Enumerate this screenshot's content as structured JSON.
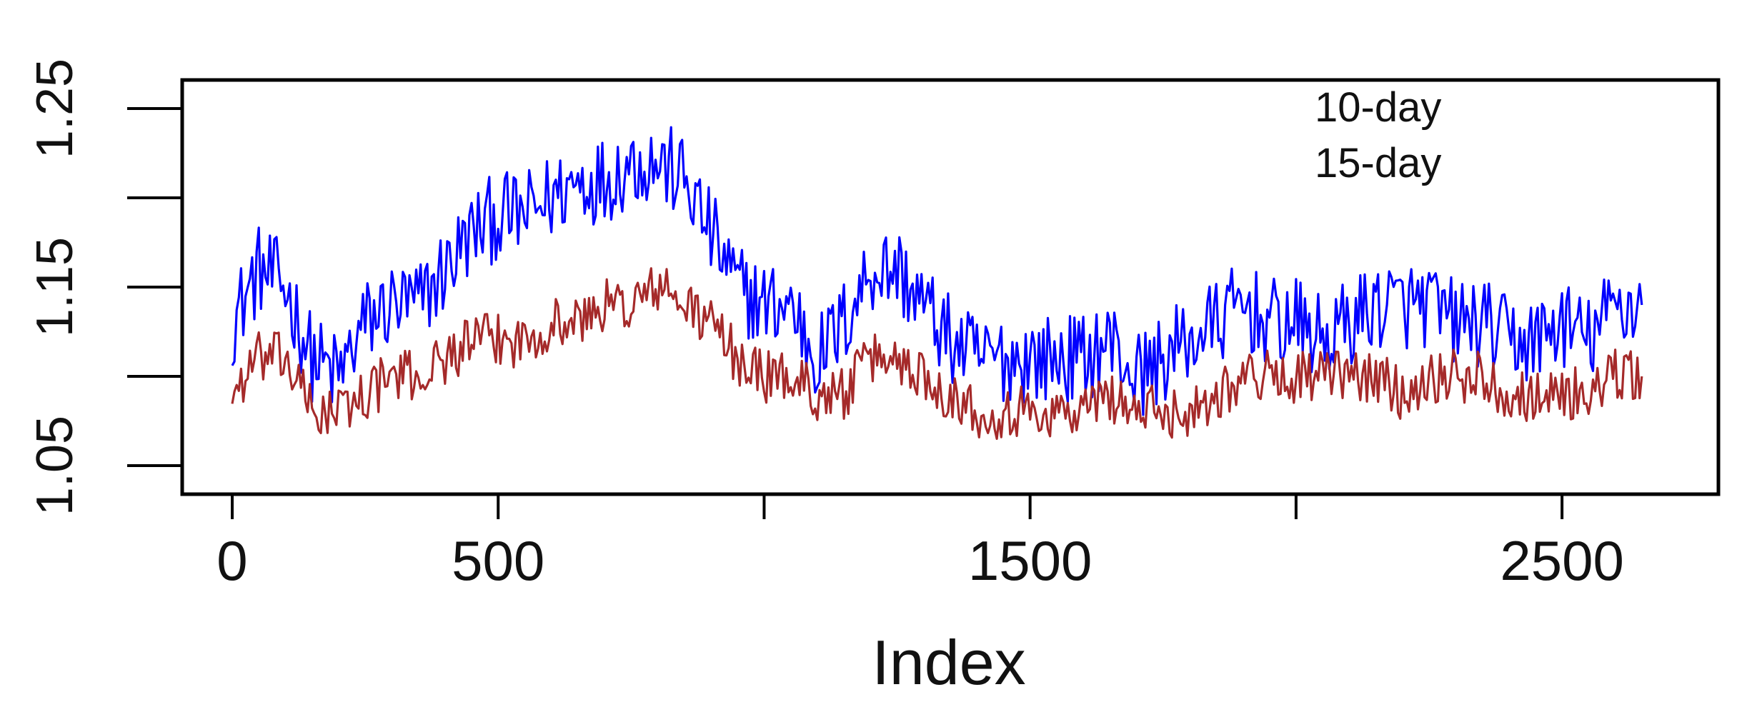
{
  "chart_data": {
    "type": "line",
    "title": "",
    "xlabel": "Index",
    "ylabel": "",
    "xlim": [
      0,
      2700
    ],
    "ylim": [
      1.05,
      1.25
    ],
    "x_ticks": [
      0,
      500,
      1000,
      1500,
      2000,
      2500
    ],
    "x_tick_labels": [
      "0",
      "500",
      "",
      "1500",
      "",
      "2500"
    ],
    "y_ticks": [
      1.05,
      1.1,
      1.15,
      1.2,
      1.25
    ],
    "y_tick_labels": [
      "1.05",
      "",
      "1.15",
      "",
      "1.25"
    ],
    "legend_position": "top-right",
    "grid": false,
    "series": [
      {
        "name": "15-day",
        "color": "#0000ff",
        "x": [
          0,
          50,
          100,
          150,
          200,
          250,
          300,
          350,
          400,
          450,
          500,
          550,
          600,
          650,
          700,
          750,
          800,
          850,
          900,
          950,
          1000,
          1050,
          1100,
          1150,
          1200,
          1250,
          1300,
          1350,
          1400,
          1450,
          1500,
          1550,
          1600,
          1650,
          1700,
          1750,
          1800,
          1850,
          1900,
          1950,
          2000,
          2050,
          2100,
          2150,
          2200,
          2250,
          2300,
          2350,
          2400,
          2450,
          2500,
          2550,
          2600,
          2650
        ],
        "values": [
          1.13,
          1.16,
          1.15,
          1.11,
          1.1,
          1.13,
          1.14,
          1.14,
          1.16,
          1.18,
          1.19,
          1.19,
          1.2,
          1.21,
          1.21,
          1.22,
          1.22,
          1.21,
          1.18,
          1.15,
          1.14,
          1.14,
          1.11,
          1.13,
          1.16,
          1.16,
          1.14,
          1.12,
          1.11,
          1.11,
          1.11,
          1.11,
          1.11,
          1.12,
          1.1,
          1.11,
          1.12,
          1.13,
          1.14,
          1.13,
          1.13,
          1.12,
          1.13,
          1.14,
          1.14,
          1.14,
          1.13,
          1.13,
          1.12,
          1.12,
          1.13,
          1.12,
          1.14,
          1.14
        ]
      },
      {
        "name": "10-day",
        "color": "#a52a2a",
        "x": [
          0,
          50,
          100,
          150,
          200,
          250,
          300,
          350,
          400,
          450,
          500,
          550,
          600,
          650,
          700,
          750,
          800,
          850,
          900,
          950,
          1000,
          1050,
          1100,
          1150,
          1200,
          1250,
          1300,
          1350,
          1400,
          1450,
          1500,
          1550,
          1600,
          1650,
          1700,
          1750,
          1800,
          1850,
          1900,
          1950,
          2000,
          2050,
          2100,
          2150,
          2200,
          2250,
          2300,
          2350,
          2400,
          2450,
          2500,
          2550,
          2600,
          2650
        ],
        "values": [
          1.09,
          1.11,
          1.11,
          1.08,
          1.08,
          1.09,
          1.1,
          1.1,
          1.11,
          1.12,
          1.12,
          1.12,
          1.13,
          1.13,
          1.14,
          1.14,
          1.15,
          1.14,
          1.13,
          1.11,
          1.1,
          1.1,
          1.09,
          1.09,
          1.11,
          1.11,
          1.1,
          1.09,
          1.08,
          1.08,
          1.08,
          1.08,
          1.08,
          1.09,
          1.08,
          1.08,
          1.08,
          1.09,
          1.1,
          1.1,
          1.1,
          1.1,
          1.1,
          1.1,
          1.09,
          1.1,
          1.1,
          1.1,
          1.09,
          1.09,
          1.09,
          1.09,
          1.1,
          1.1
        ]
      }
    ]
  },
  "axes": {
    "x_title": "Index"
  },
  "legend": {
    "items": [
      "10-day",
      "15-day"
    ]
  }
}
